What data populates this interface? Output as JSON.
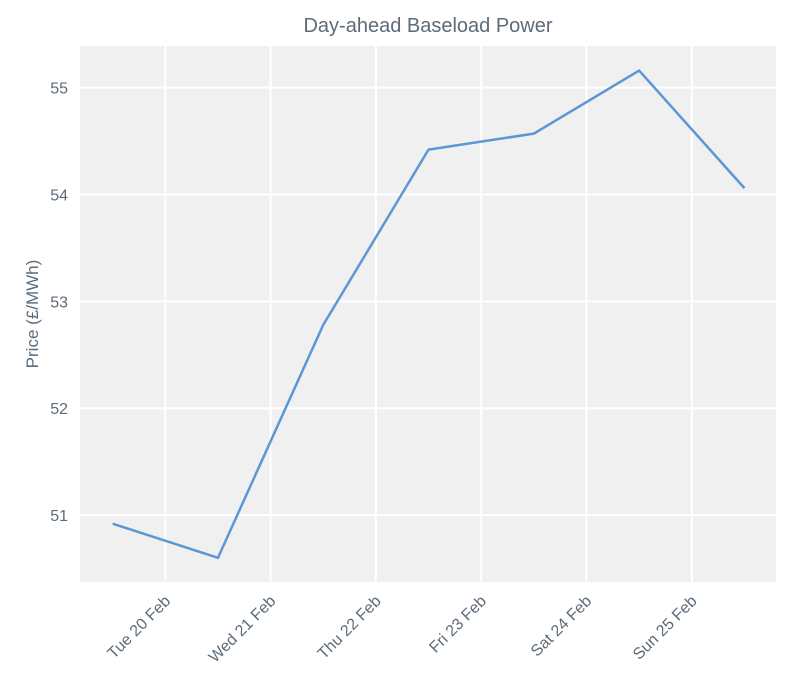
{
  "chart_data": {
    "type": "line",
    "title": "Day-ahead Baseload Power",
    "y_label": "Price (£/MWh)",
    "x": [
      19.5,
      20.5,
      21.5,
      22.5,
      23.5,
      24.5,
      25.5
    ],
    "series": [
      {
        "name": "Day-ahead Baseload Power",
        "color": "#5b97d5",
        "values": [
          50.92,
          50.6,
          52.78,
          54.42,
          54.57,
          55.16,
          54.06
        ]
      }
    ],
    "xlim": [
      19.19,
      25.8
    ],
    "xticks": [
      {
        "value": 20,
        "label": "Tue 20 Feb"
      },
      {
        "value": 21,
        "label": "Wed 21 Feb"
      },
      {
        "value": 22,
        "label": "Thu 22 Feb"
      },
      {
        "value": 23,
        "label": "Fri 23 Feb"
      },
      {
        "value": 24,
        "label": "Sat 24 Feb"
      },
      {
        "value": 25,
        "label": "Sun 25 Feb"
      }
    ],
    "ylim": [
      50.374,
      55.39
    ],
    "yticks": [
      51,
      52,
      53,
      54,
      55
    ],
    "grid": true
  }
}
